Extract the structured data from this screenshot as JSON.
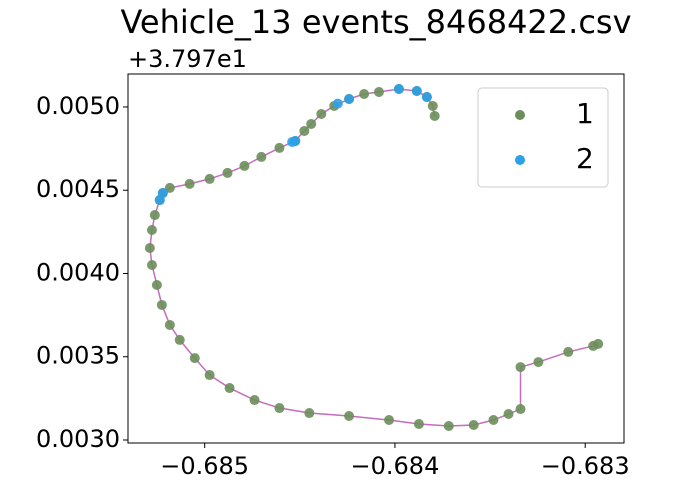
{
  "chart_data": {
    "type": "scatter",
    "title": "Vehicle_13 events_8468422.csv",
    "y_offset_text": "+3.797e1",
    "xlim": [
      -0.685403,
      -0.682796
    ],
    "ylim": [
      0.002982,
      0.005198
    ],
    "xticks": [
      {
        "value": -0.685,
        "label": "−0.685"
      },
      {
        "value": -0.684,
        "label": "−0.684"
      },
      {
        "value": -0.683,
        "label": "−0.683"
      }
    ],
    "yticks": [
      {
        "value": 0.003,
        "label": "0.0030"
      },
      {
        "value": 0.0035,
        "label": "0.0035"
      },
      {
        "value": 0.004,
        "label": "0.0040"
      },
      {
        "value": 0.0045,
        "label": "0.0045"
      },
      {
        "value": 0.005,
        "label": "0.0050"
      }
    ],
    "legend": "upper right",
    "line_color": "#c56cbf",
    "series": [
      {
        "name": "1",
        "color": "#6b8e5a",
        "x": [
          -0.683791,
          -0.683801,
          -0.683832,
          -0.683885,
          -0.683979,
          -0.684084,
          -0.684162,
          -0.684241,
          -0.684319,
          -0.684387,
          -0.68444,
          -0.684476,
          -0.684524,
          -0.684607,
          -0.684702,
          -0.684791,
          -0.68488,
          -0.684974,
          -0.685079,
          -0.685183,
          -0.68522,
          -0.685236,
          -0.685262,
          -0.685277,
          -0.685288,
          -0.685277,
          -0.685251,
          -0.685225,
          -0.685183,
          -0.685131,
          -0.685052,
          -0.684974,
          -0.684869,
          -0.684738,
          -0.684607,
          -0.68445,
          -0.684241,
          -0.684031,
          -0.683874,
          -0.683717,
          -0.683586,
          -0.683482,
          -0.683403,
          -0.68334,
          -0.68334,
          -0.683246,
          -0.683089,
          -0.682958,
          -0.682932
        ],
        "y": [
          0.004946,
          0.005006,
          0.00506,
          0.005096,
          0.005108,
          0.00509,
          0.005078,
          0.005048,
          0.005006,
          0.004958,
          0.004898,
          0.004856,
          0.004796,
          0.004754,
          0.0047,
          0.004646,
          0.004604,
          0.004568,
          0.004538,
          0.004514,
          0.004483,
          0.004441,
          0.004351,
          0.004261,
          0.004153,
          0.004051,
          0.003931,
          0.003811,
          0.003691,
          0.003601,
          0.003492,
          0.00339,
          0.003312,
          0.00324,
          0.003192,
          0.003162,
          0.003144,
          0.00312,
          0.003096,
          0.003084,
          0.00309,
          0.00312,
          0.003156,
          0.003186,
          0.003438,
          0.003468,
          0.003529,
          0.003565,
          0.003577
        ]
      },
      {
        "name": "2",
        "color": "#2ca0e8",
        "x": [
          -0.683832,
          -0.683885,
          -0.683979,
          -0.684241,
          -0.6843,
          -0.684524,
          -0.68454,
          -0.68522,
          -0.685236
        ],
        "y": [
          0.00506,
          0.005096,
          0.005108,
          0.005048,
          0.00502,
          0.004796,
          0.00479,
          0.004483,
          0.004441
        ]
      }
    ]
  }
}
